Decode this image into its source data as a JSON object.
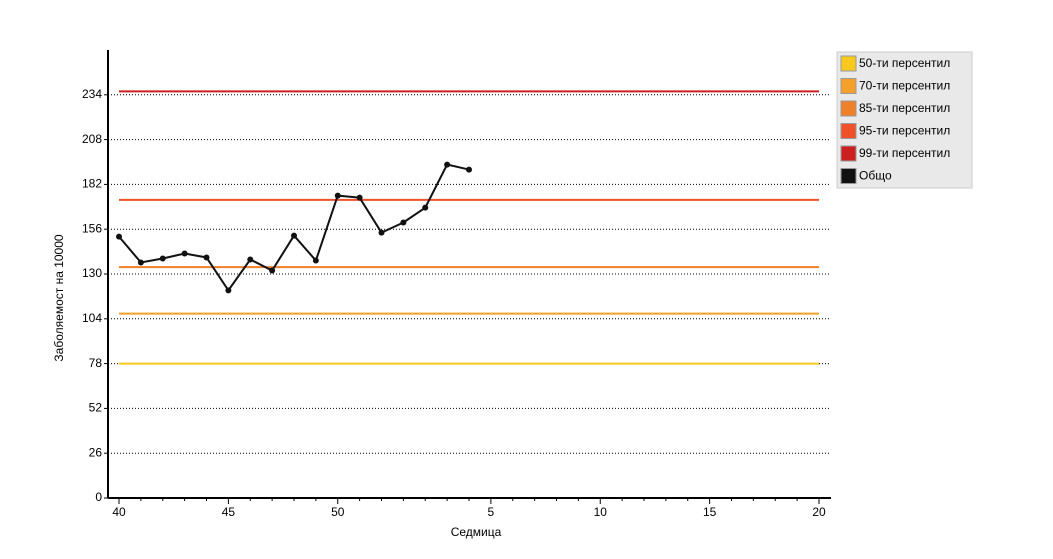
{
  "chart_data": {
    "type": "line",
    "x_label": "Седмица",
    "y_label": "Заболяемост на 10000",
    "categories": [
      "40",
      null,
      null,
      null,
      null,
      "45",
      null,
      null,
      null,
      null,
      "50",
      null,
      null,
      null,
      null,
      null,
      null,
      "5",
      null,
      null,
      null,
      null,
      "10",
      null,
      null,
      null,
      null,
      "15",
      null,
      null,
      null,
      null,
      "20"
    ],
    "ylim": [
      0,
      260
    ],
    "yticks": [
      0,
      26,
      52,
      78,
      104,
      130,
      156,
      182,
      208,
      234
    ],
    "grid": true,
    "legend": "right",
    "series": [
      {
        "name": "50-ти персентил",
        "color": "#f7c81e",
        "values": [
          78,
          78,
          78,
          78,
          78,
          78,
          78,
          78,
          78,
          78,
          78,
          78,
          78,
          78,
          78,
          78,
          78,
          78,
          78,
          78,
          78,
          78,
          78,
          78,
          78,
          78,
          78,
          78,
          78,
          78,
          78,
          78,
          78
        ]
      },
      {
        "name": "70-ти персентил",
        "color": "#f5a02a",
        "values": [
          107,
          107,
          107,
          107,
          107,
          107,
          107,
          107,
          107,
          107,
          107,
          107,
          107,
          107,
          107,
          107,
          107,
          107,
          107,
          107,
          107,
          107,
          107,
          107,
          107,
          107,
          107,
          107,
          107,
          107,
          107,
          107,
          107
        ]
      },
      {
        "name": "85-ти персентил",
        "color": "#f07f2a",
        "values": [
          134,
          134,
          134,
          134,
          134,
          134,
          134,
          134,
          134,
          134,
          134,
          134,
          134,
          134,
          134,
          134,
          134,
          134,
          134,
          134,
          134,
          134,
          134,
          134,
          134,
          134,
          134,
          134,
          134,
          134,
          134,
          134,
          134
        ]
      },
      {
        "name": "95-ти персентил",
        "color": "#f0502a",
        "values": [
          173,
          173,
          173,
          173,
          173,
          173,
          173,
          173,
          173,
          173,
          173,
          173,
          173,
          173,
          173,
          173,
          173,
          173,
          173,
          173,
          173,
          173,
          173,
          173,
          173,
          173,
          173,
          173,
          173,
          173,
          173,
          173,
          173
        ]
      },
      {
        "name": "99-ти персентил",
        "color": "#cc1f1f",
        "values": [
          236,
          236,
          236,
          236,
          236,
          236,
          236,
          236,
          236,
          236,
          236,
          236,
          236,
          236,
          236,
          236,
          236,
          236,
          236,
          236,
          236,
          236,
          236,
          236,
          236,
          236,
          236,
          236,
          236,
          236,
          236,
          236,
          236
        ]
      },
      {
        "name": "Общо",
        "color": "#111111",
        "markers": true,
        "values": [
          151.7,
          136.7,
          139,
          141.9,
          139.6,
          120.5,
          138.4,
          132,
          152.3,
          137.8,
          175.5,
          174.3,
          154,
          159.9,
          168.5,
          193.5,
          190.6,
          null,
          null,
          null,
          null,
          null,
          null,
          null,
          null,
          null,
          null,
          null,
          null,
          null,
          null,
          null,
          null
        ]
      }
    ]
  }
}
